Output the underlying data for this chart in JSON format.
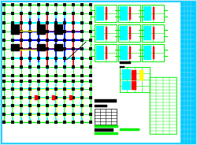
{
  "bg": "#c8e8f0",
  "paper": "#ffffff",
  "border_cyan": "#00ccff",
  "green": "#00ee00",
  "cyan": "#00ffff",
  "red": "#ff0000",
  "blue": "#0000ff",
  "black": "#000000",
  "yellow": "#ffff00",
  "dark_cyan": "#008888",
  "fig_w": 2.5,
  "fig_h": 1.84,
  "dpi": 100
}
